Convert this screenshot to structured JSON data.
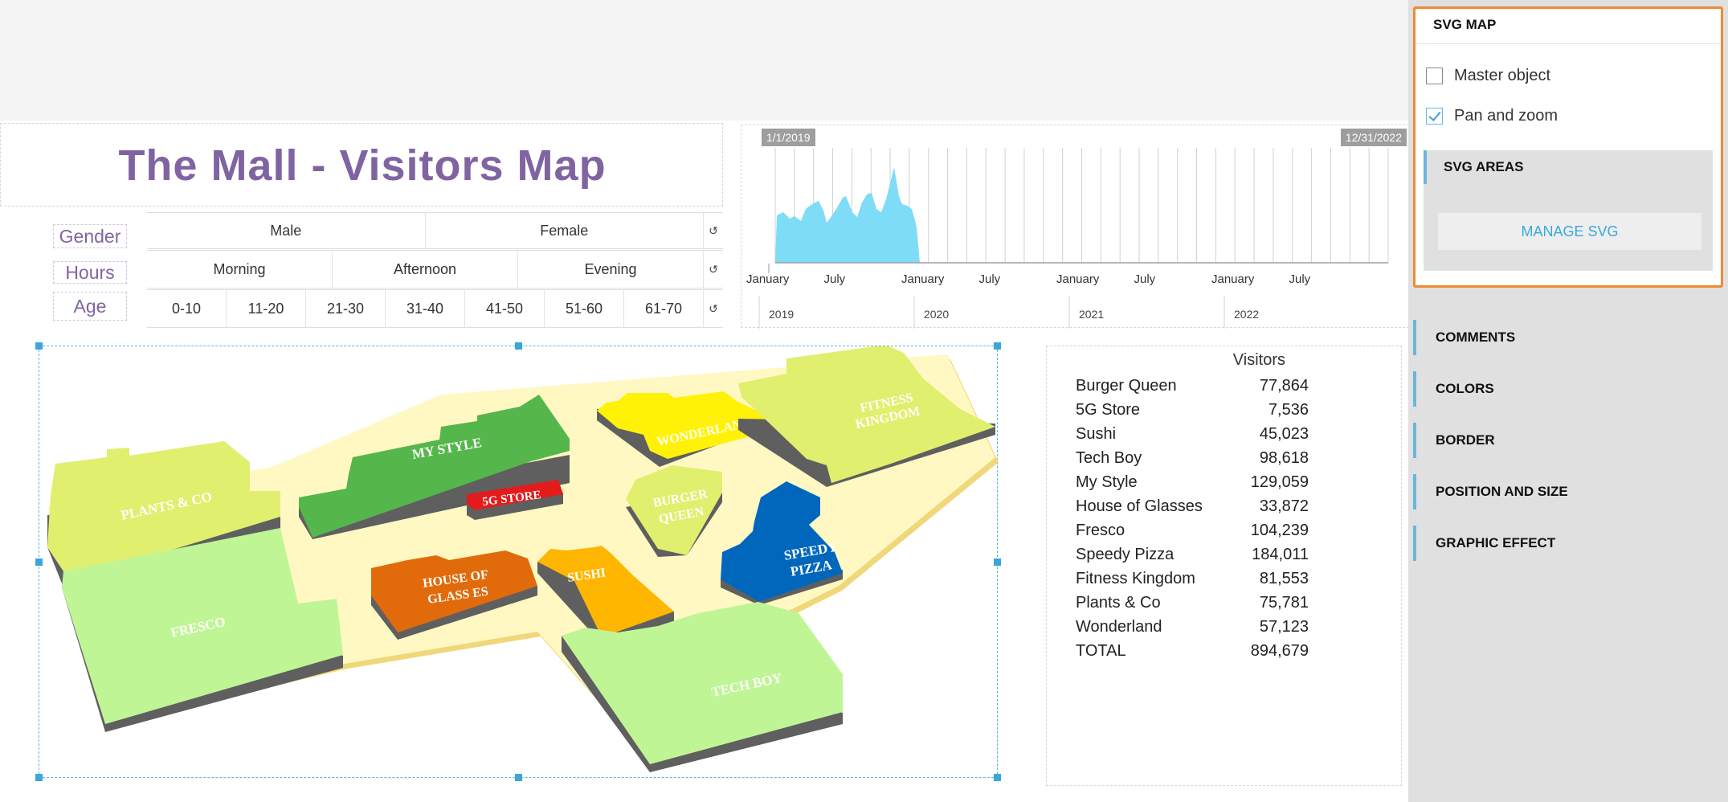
{
  "title": "The Mall - Visitors Map",
  "filters": {
    "gender": {
      "label": "Gender",
      "options": [
        "Male",
        "Female"
      ]
    },
    "hours": {
      "label": "Hours",
      "options": [
        "Morning",
        "Afternoon",
        "Evening"
      ]
    },
    "age": {
      "label": "Age",
      "options": [
        "0-10",
        "11-20",
        "21-30",
        "31-40",
        "41-50",
        "51-60",
        "61-70"
      ]
    },
    "reset_icon": "reset-icon"
  },
  "timeline": {
    "start_date": "1/1/2019",
    "end_date": "12/31/2022",
    "month_labels": [
      "January",
      "July",
      "January",
      "July",
      "January",
      "July",
      "January",
      "July"
    ],
    "year_labels": [
      "2019",
      "2020",
      "2021",
      "2022"
    ],
    "fill_color": "#7fdcf7"
  },
  "map": {
    "stores": {
      "plants": "PLANTS & CO",
      "mystyle": "MY STYLE",
      "wonderland": "WONDERLAND",
      "fitness_1": "FITNESS",
      "fitness_2": "KINGDOM",
      "g5": "5G STORE",
      "burger_1": "BURGER",
      "burger_2": "QUEEN",
      "speedy_1": "SPEEDY",
      "speedy_2": "PIZZA",
      "house_1": "HOUSE OF",
      "house_2": "GLASS ES",
      "sushi": "SUSHI",
      "fresco": "FRESCO",
      "techboy": "TECH BOY"
    }
  },
  "visitors": {
    "header": "Visitors",
    "rows": [
      {
        "name": "Burger Queen",
        "value": "77,864"
      },
      {
        "name": "5G Store",
        "value": "7,536"
      },
      {
        "name": "Sushi",
        "value": "45,023"
      },
      {
        "name": "Tech Boy",
        "value": "98,618"
      },
      {
        "name": "My Style",
        "value": "129,059"
      },
      {
        "name": "House of Glasses",
        "value": "33,872"
      },
      {
        "name": "Fresco",
        "value": "104,239"
      },
      {
        "name": "Speedy Pizza",
        "value": "184,011"
      },
      {
        "name": "Fitness Kingdom",
        "value": "81,553"
      },
      {
        "name": "Plants & Co",
        "value": "75,781"
      },
      {
        "name": "Wonderland",
        "value": "57,123"
      },
      {
        "name": "TOTAL",
        "value": "894,679"
      }
    ]
  },
  "panel": {
    "svg_map": {
      "title": "SVG MAP",
      "master_object": {
        "label": "Master object",
        "checked": false
      },
      "pan_zoom": {
        "label": "Pan and zoom",
        "checked": true
      },
      "svg_areas": {
        "title": "SVG AREAS",
        "button": "MANAGE SVG"
      }
    },
    "sections": [
      "COMMENTS",
      "COLORS",
      "BORDER",
      "POSITION AND SIZE",
      "GRAPHIC EFFECT"
    ],
    "accent_color": "#ef8a33"
  }
}
